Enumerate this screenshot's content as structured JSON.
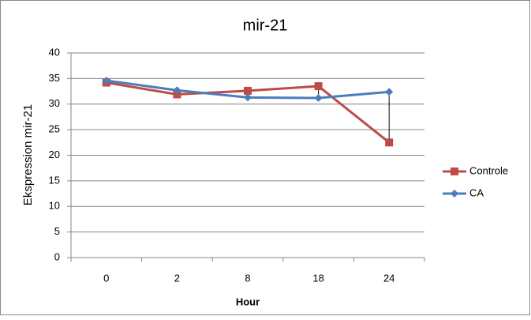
{
  "chart_data": {
    "type": "line",
    "title": "mir-21",
    "x_label": "Hour",
    "y_label": "Ekspression mir-21",
    "categories": [
      "0",
      "2",
      "8",
      "18",
      "24"
    ],
    "series": [
      {
        "name": "Controle",
        "color": "#be4b48",
        "marker": "square",
        "values": [
          34.2,
          31.9,
          32.6,
          33.5,
          22.5
        ]
      },
      {
        "name": "CA",
        "color": "#4a7ebb",
        "marker": "diamond",
        "values": [
          34.6,
          32.7,
          31.3,
          31.2,
          32.4
        ]
      }
    ],
    "ylim": [
      0,
      40
    ],
    "yticks": [
      0,
      5,
      10,
      15,
      20,
      25,
      30,
      35,
      40
    ],
    "grid": true,
    "legend": "right",
    "high_low_lines": true
  }
}
